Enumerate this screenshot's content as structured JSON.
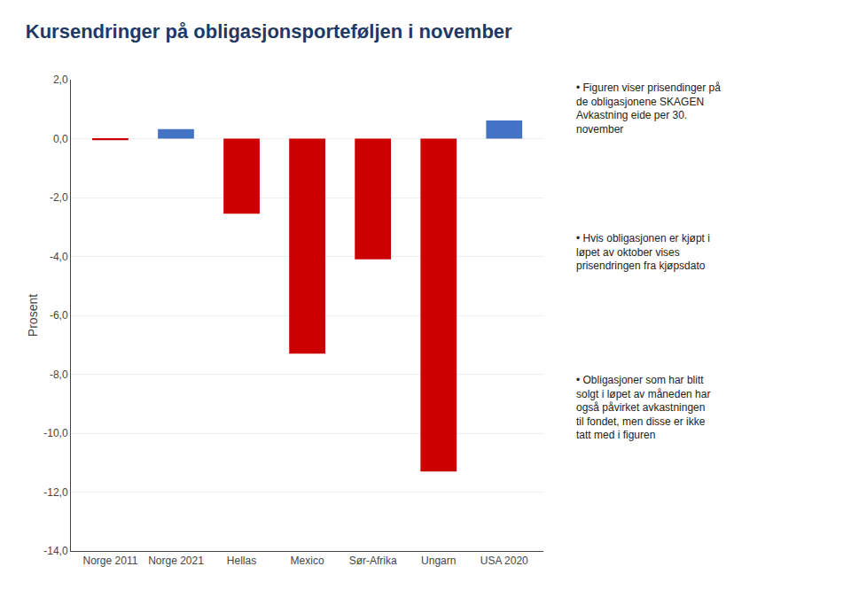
{
  "chart_data": {
    "type": "bar",
    "title": "Kursendringer på obligasjonsporteføljen i november",
    "categories": [
      "Norge 2011",
      "Norge 2021",
      "Hellas",
      "Mexico",
      "Sør-Afrika",
      "Ungarn",
      "USA 2020"
    ],
    "values": [
      -0.05,
      0.32,
      -2.55,
      -7.3,
      -4.1,
      -11.3,
      0.62
    ],
    "colors": [
      "#cc0000",
      "#4472c4",
      "#cc0000",
      "#cc0000",
      "#cc0000",
      "#cc0000",
      "#4472c4"
    ],
    "ylabel": "Prosent",
    "ylim": [
      -14.0,
      2.0
    ],
    "yticks": [
      {
        "value": 2.0,
        "label": "2,0"
      },
      {
        "value": 0.0,
        "label": "0,0"
      },
      {
        "value": -2.0,
        "label": "-2,0"
      },
      {
        "value": -4.0,
        "label": "-4,0"
      },
      {
        "value": -6.0,
        "label": "-6,0"
      },
      {
        "value": -8.0,
        "label": "-8,0"
      },
      {
        "value": -10.0,
        "label": "-10,0"
      },
      {
        "value": -12.0,
        "label": "-12,0"
      },
      {
        "value": -14.0,
        "label": "-14,0"
      }
    ],
    "grid": true,
    "annotations": [
      "• Figuren viser prisendinger på\nde obligasjonene SKAGEN\nAvkastning eide per 30.\nnovember",
      "• Hvis obligasjonen er kjøpt i\nløpet av oktober vises\nprisendringen fra kjøpsdato",
      "• Obligasjoner som har blitt\nsolgt i løpet av måneden har\nogså påvirket avkastningen\ntil fondet, men disse er ikke\ntatt med i figuren"
    ]
  }
}
